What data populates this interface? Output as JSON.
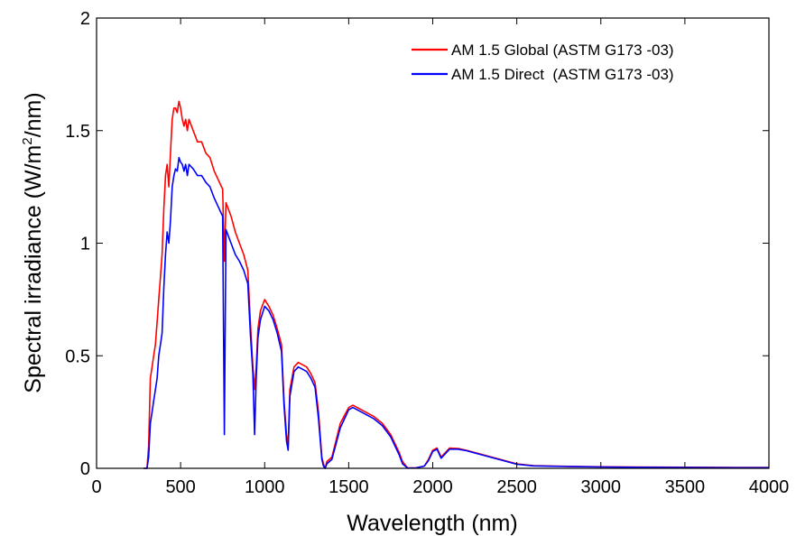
{
  "chart_data": {
    "type": "line",
    "title": "",
    "xlabel": "Wavelength (nm)",
    "ylabel_parts": {
      "pre": "Spectral irradiance (W/m",
      "sup": "2",
      "post": "/nm)"
    },
    "xlim": [
      0,
      4000
    ],
    "ylim": [
      0,
      2
    ],
    "xticks": [
      0,
      500,
      1000,
      1500,
      2000,
      2500,
      3000,
      3500,
      4000
    ],
    "xtick_labels": [
      "0",
      "500",
      "1000",
      "1500",
      "2000",
      "2500",
      "3000",
      "3500",
      "4000"
    ],
    "yticks": [
      0,
      0.5,
      1,
      1.5,
      2
    ],
    "ytick_labels": [
      "0",
      "0.5",
      "1",
      "1.5",
      "2"
    ],
    "grid": false,
    "legend_position": "top-right",
    "series": [
      {
        "name": "AM 1.5 Global (ASTM G173 -03)",
        "color": "#ff0000",
        "x": [
          280,
          300,
          310,
          320,
          330,
          340,
          350,
          360,
          370,
          380,
          390,
          400,
          410,
          420,
          430,
          440,
          450,
          460,
          470,
          480,
          490,
          500,
          510,
          520,
          530,
          540,
          550,
          575,
          600,
          625,
          650,
          675,
          700,
          725,
          750,
          760,
          770,
          800,
          825,
          850,
          875,
          900,
          915,
          930,
          940,
          950,
          960,
          975,
          1000,
          1025,
          1050,
          1075,
          1100,
          1115,
          1130,
          1140,
          1150,
          1175,
          1200,
          1225,
          1250,
          1275,
          1300,
          1320,
          1340,
          1350,
          1360,
          1370,
          1400,
          1450,
          1500,
          1525,
          1550,
          1600,
          1650,
          1700,
          1750,
          1800,
          1820,
          1850,
          1900,
          1950,
          1975,
          2000,
          2025,
          2050,
          2100,
          2150,
          2200,
          2250,
          2300,
          2350,
          2400,
          2450,
          2500,
          2600,
          2800,
          3000,
          3200,
          3500,
          3800,
          4000
        ],
        "values": [
          0,
          0,
          0.1,
          0.4,
          0.45,
          0.5,
          0.55,
          0.65,
          0.75,
          0.85,
          0.95,
          1.15,
          1.3,
          1.35,
          1.25,
          1.4,
          1.55,
          1.6,
          1.6,
          1.58,
          1.63,
          1.6,
          1.55,
          1.52,
          1.55,
          1.5,
          1.55,
          1.5,
          1.45,
          1.45,
          1.4,
          1.38,
          1.32,
          1.28,
          1.24,
          0.92,
          1.18,
          1.12,
          1.05,
          1.0,
          0.95,
          0.88,
          0.65,
          0.45,
          0.35,
          0.45,
          0.62,
          0.7,
          0.75,
          0.72,
          0.68,
          0.62,
          0.55,
          0.3,
          0.15,
          0.1,
          0.35,
          0.45,
          0.47,
          0.46,
          0.45,
          0.42,
          0.38,
          0.25,
          0.05,
          0.02,
          0,
          0.03,
          0.05,
          0.2,
          0.27,
          0.28,
          0.27,
          0.25,
          0.23,
          0.2,
          0.15,
          0.07,
          0.03,
          0.002,
          0.002,
          0.01,
          0.04,
          0.08,
          0.09,
          0.05,
          0.09,
          0.088,
          0.08,
          0.07,
          0.06,
          0.05,
          0.04,
          0.03,
          0.02,
          0.012,
          0.009,
          0.007,
          0.006,
          0.005,
          0.004,
          0.004
        ]
      },
      {
        "name": "AM 1.5 Direct  (ASTM G173 -03)",
        "color": "#0000ff",
        "x": [
          280,
          300,
          310,
          320,
          330,
          340,
          350,
          360,
          370,
          380,
          390,
          400,
          410,
          420,
          430,
          440,
          450,
          460,
          470,
          480,
          490,
          500,
          510,
          520,
          530,
          540,
          550,
          575,
          600,
          625,
          650,
          675,
          700,
          725,
          750,
          760,
          770,
          800,
          825,
          850,
          875,
          900,
          915,
          930,
          940,
          950,
          960,
          975,
          1000,
          1025,
          1050,
          1075,
          1100,
          1115,
          1130,
          1140,
          1150,
          1175,
          1200,
          1225,
          1250,
          1275,
          1300,
          1320,
          1340,
          1350,
          1360,
          1370,
          1400,
          1450,
          1500,
          1525,
          1550,
          1600,
          1650,
          1700,
          1750,
          1800,
          1820,
          1850,
          1900,
          1950,
          1975,
          2000,
          2025,
          2050,
          2100,
          2150,
          2200,
          2250,
          2300,
          2350,
          2400,
          2450,
          2500,
          2600,
          2800,
          3000,
          3200,
          3500,
          3800,
          4000
        ],
        "values": [
          0,
          0,
          0.05,
          0.2,
          0.25,
          0.3,
          0.35,
          0.4,
          0.5,
          0.55,
          0.6,
          0.8,
          0.95,
          1.05,
          1.0,
          1.1,
          1.25,
          1.3,
          1.33,
          1.32,
          1.38,
          1.36,
          1.35,
          1.32,
          1.35,
          1.3,
          1.35,
          1.33,
          1.3,
          1.3,
          1.27,
          1.25,
          1.2,
          1.16,
          1.12,
          0.15,
          1.06,
          1.0,
          0.95,
          0.92,
          0.88,
          0.82,
          0.6,
          0.42,
          0.15,
          0.4,
          0.58,
          0.66,
          0.72,
          0.7,
          0.66,
          0.6,
          0.52,
          0.28,
          0.12,
          0.08,
          0.32,
          0.43,
          0.45,
          0.44,
          0.43,
          0.4,
          0.36,
          0.22,
          0.04,
          0.01,
          0,
          0.02,
          0.04,
          0.18,
          0.26,
          0.27,
          0.26,
          0.24,
          0.22,
          0.19,
          0.14,
          0.06,
          0.02,
          0.001,
          0.002,
          0.01,
          0.035,
          0.075,
          0.085,
          0.045,
          0.085,
          0.085,
          0.078,
          0.068,
          0.058,
          0.048,
          0.038,
          0.028,
          0.018,
          0.011,
          0.008,
          0.006,
          0.005,
          0.004,
          0.003,
          0.003
        ]
      }
    ]
  }
}
